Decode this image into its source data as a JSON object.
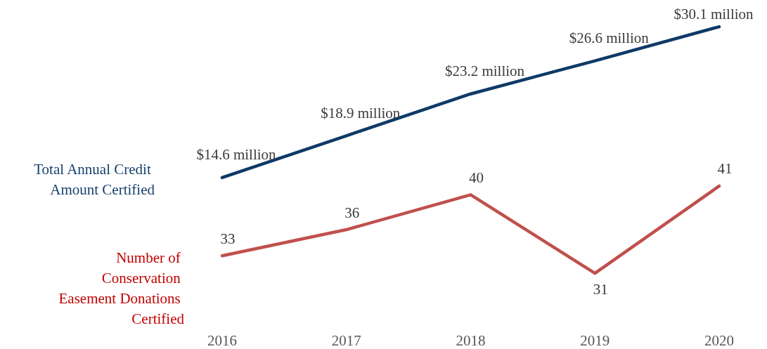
{
  "chart_data": [
    {
      "type": "line",
      "categories": [
        "2016",
        "2017",
        "2018",
        "2019",
        "2020"
      ],
      "legend": false,
      "grid": false,
      "tick_labels": false,
      "line_style": "solid",
      "marker": "none",
      "series": [
        {
          "name": "Total Annual Credit Amount Certified",
          "color": "#0e3a66",
          "values": [
            14.6,
            18.9,
            23.2,
            26.6,
            30.1
          ],
          "value_labels": [
            "$14.6 million",
            "$18.9 million",
            "$23.2 million",
            "$26.6 million",
            "$30.1 million"
          ]
        }
      ]
    },
    {
      "type": "line",
      "categories": [
        "2016",
        "2017",
        "2018",
        "2019",
        "2020"
      ],
      "legend": false,
      "grid": false,
      "tick_labels": "x",
      "line_style": "solid",
      "marker": "none",
      "data_labels": true,
      "series": [
        {
          "name": "Number of Conservation Easement Donations Certified",
          "color": "#c0504d",
          "values": [
            33,
            36,
            40,
            31,
            41
          ]
        }
      ]
    }
  ]
}
